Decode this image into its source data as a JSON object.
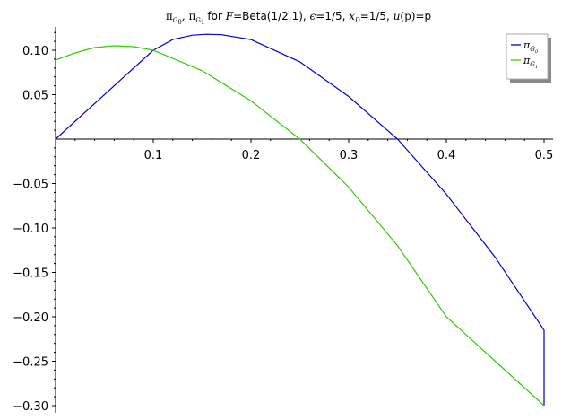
{
  "chart_data": {
    "type": "line",
    "title_parts": {
      "names": "π",
      "g0_sub": "G",
      "g0_subsub": "0",
      "comma": ", ",
      "g1_sub": "G",
      "g1_subsub": "1",
      "for_text": "for ",
      "F": "F",
      "eq_beta": "=Beta(1/2,1), ",
      "eps": "ϵ",
      "eq_eps": "=1/5, ",
      "x": "x",
      "xsub": "D",
      "eq_x": "=1/5, ",
      "u": "u",
      "up_paren": "(p)",
      "eq_u": "=p"
    },
    "xlim": [
      0.0,
      0.5
    ],
    "ylim": [
      -0.3,
      0.12
    ],
    "xticks": [
      {
        "value": 0.1,
        "label": "0.1"
      },
      {
        "value": 0.2,
        "label": "0.2"
      },
      {
        "value": 0.3,
        "label": "0.3"
      },
      {
        "value": 0.4,
        "label": "0.4"
      },
      {
        "value": 0.5,
        "label": "0.5"
      }
    ],
    "yticks": [
      {
        "value": 0.1,
        "label": "0.10"
      },
      {
        "value": 0.05,
        "label": "0.05"
      },
      {
        "value": -0.05,
        "label": "−0.05"
      },
      {
        "value": -0.1,
        "label": "−0.10"
      },
      {
        "value": -0.15,
        "label": "−0.15"
      },
      {
        "value": -0.2,
        "label": "−0.20"
      },
      {
        "value": -0.25,
        "label": "−0.25"
      },
      {
        "value": -0.3,
        "label": "−0.30"
      }
    ],
    "grid": false,
    "legend_position": "top-right",
    "series": [
      {
        "name": "πG0",
        "legend_main": "π",
        "legend_sub": "G",
        "legend_subsub": "0",
        "color": "#0000cc",
        "x": [
          0.0,
          0.1,
          0.12,
          0.14,
          0.155,
          0.17,
          0.2,
          0.25,
          0.3,
          0.35,
          0.4,
          0.45,
          0.5,
          0.5
        ],
        "y": [
          0.0,
          0.1,
          0.112,
          0.117,
          0.118,
          0.1175,
          0.112,
          0.087,
          0.048,
          0.0,
          -0.062,
          -0.133,
          -0.215,
          -0.3
        ]
      },
      {
        "name": "πG1",
        "legend_main": "π",
        "legend_sub": "G",
        "legend_subsub": "1",
        "color": "#33cc00",
        "x": [
          0.0,
          0.02,
          0.04,
          0.06,
          0.08,
          0.1,
          0.15,
          0.2,
          0.25,
          0.3,
          0.35,
          0.4,
          0.45,
          0.5
        ],
        "y": [
          0.089,
          0.097,
          0.103,
          0.105,
          0.104,
          0.1,
          0.077,
          0.043,
          0.0,
          -0.054,
          -0.12,
          -0.2,
          -0.25,
          -0.3
        ]
      }
    ]
  }
}
